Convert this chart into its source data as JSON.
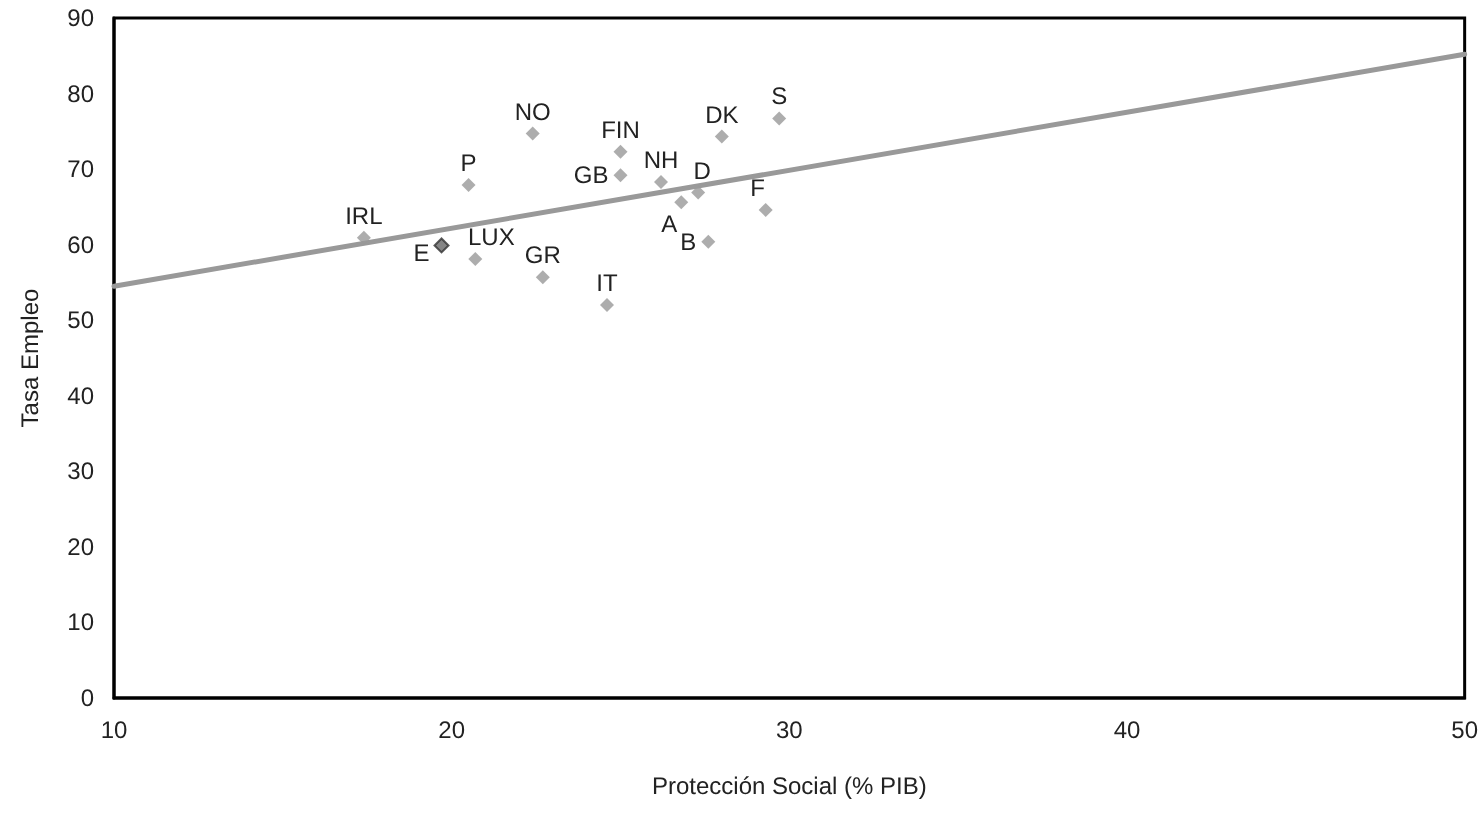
{
  "chart_data": {
    "type": "scatter",
    "xlabel": "Protección Social (% PIB)",
    "ylabel": "Tasa Empleo",
    "xlim": [
      10,
      50
    ],
    "xticks": [
      10,
      20,
      30,
      40,
      50
    ],
    "ylim": [
      0,
      90
    ],
    "yticks": [
      0,
      10,
      20,
      30,
      40,
      50,
      60,
      70,
      80,
      90
    ],
    "grid": false,
    "marker": "diamond",
    "series": [
      {
        "type": "scatter",
        "color": "#999999",
        "colors": [
          "#999999",
          "#666666",
          "#999999",
          "#999999",
          "#999999",
          "#999999",
          "#999999",
          "#999999",
          "#999999",
          "#999999",
          "#999999",
          "#999999",
          "#999999",
          "#999999",
          "#999999",
          "#999999"
        ],
        "x": [
          17.4,
          19.7,
          20.7,
          22.7,
          24.6,
          20.5,
          22.4,
          25.0,
          25.0,
          26.2,
          27.3,
          26.8,
          27.6,
          29.3,
          28.0,
          29.7
        ],
        "values": [
          60.9,
          59.9,
          58.1,
          55.7,
          52.0,
          67.9,
          74.7,
          72.3,
          69.2,
          68.3,
          66.9,
          65.6,
          60.4,
          64.6,
          74.3,
          76.7
        ]
      },
      {
        "type": "line",
        "marker": "none",
        "color": "#999999",
        "x": [
          10,
          50
        ],
        "values": [
          54.5,
          85.2
        ]
      }
    ],
    "annotations": [
      {
        "text": "IRL",
        "x": 17.4,
        "y": 60.9
      },
      {
        "text": "E",
        "x": 19.7,
        "y": 59.9
      },
      {
        "text": "LUX",
        "x": 20.7,
        "y": 58.1
      },
      {
        "text": "GR",
        "x": 22.7,
        "y": 55.7
      },
      {
        "text": "IT",
        "x": 24.6,
        "y": 52.0
      },
      {
        "text": "P",
        "x": 20.5,
        "y": 67.9
      },
      {
        "text": "NO",
        "x": 22.4,
        "y": 74.7
      },
      {
        "text": "FIN",
        "x": 25.0,
        "y": 72.3
      },
      {
        "text": "GB",
        "x": 25.0,
        "y": 69.2
      },
      {
        "text": "NH",
        "x": 26.2,
        "y": 68.3
      },
      {
        "text": "D",
        "x": 27.3,
        "y": 66.9
      },
      {
        "text": "A",
        "x": 26.8,
        "y": 65.6
      },
      {
        "text": "B",
        "x": 27.6,
        "y": 60.4
      },
      {
        "text": "F",
        "x": 29.3,
        "y": 64.6
      },
      {
        "text": "DK",
        "x": 28.0,
        "y": 74.3
      },
      {
        "text": "S",
        "x": 29.7,
        "y": 76.7
      }
    ]
  }
}
